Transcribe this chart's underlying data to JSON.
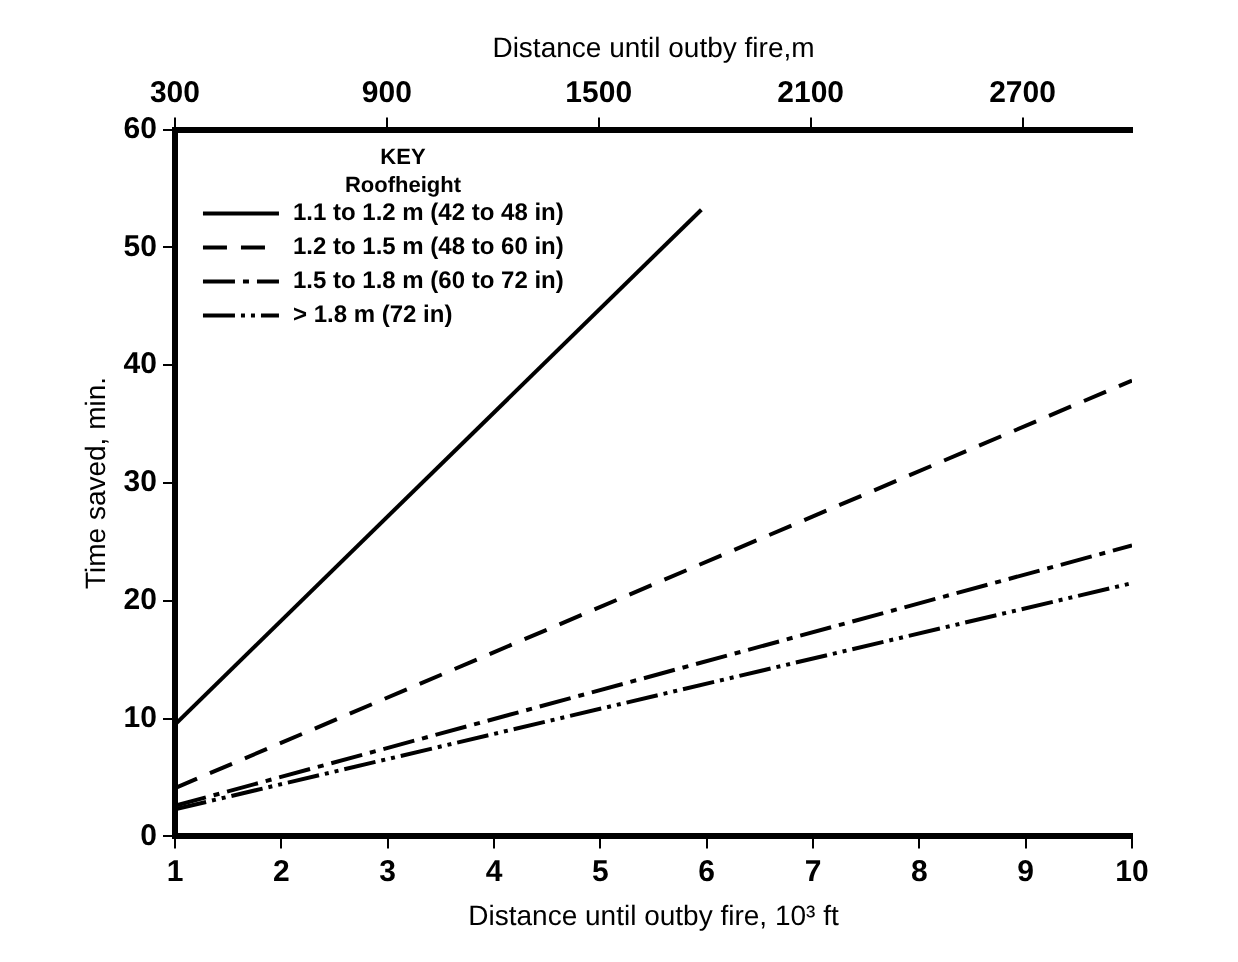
{
  "chart_data": {
    "type": "line",
    "xlabel": "Distance until outby fire, 10³ ft",
    "x2label": "Distance until outby fire,m",
    "ylabel": "Time saved, min.",
    "legend_title": "KEY\nRoofheight",
    "xlim": [
      1,
      10
    ],
    "xticks": [
      1,
      2,
      3,
      4,
      5,
      6,
      7,
      8,
      9,
      10
    ],
    "x2lim": [
      300,
      3010
    ],
    "x2ticks": [
      300,
      900,
      1500,
      2100,
      2700
    ],
    "ylim": [
      0,
      60
    ],
    "yticks": [
      0,
      10,
      20,
      30,
      40,
      50,
      60
    ],
    "grid": false,
    "legend": "top left",
    "marker": "none",
    "series": [
      {
        "name": "1.1 to 1.2 m (42 to 48 in)",
        "color": "#000000",
        "line_style": "solid",
        "x": [
          1,
          5.95
        ],
        "values": [
          9.5,
          53.2
        ]
      },
      {
        "name": "1.2 to 1.5 m (48 to 60 in)",
        "color": "#000000",
        "line_style": "dashed",
        "x": [
          1,
          10
        ],
        "values": [
          4.1,
          38.7
        ]
      },
      {
        "name": "1.5 to 1.8 m (60 to 72 in)",
        "color": "#000000",
        "line_style": "dashed",
        "x": [
          1,
          10
        ],
        "values": [
          2.6,
          24.7
        ]
      },
      {
        "name": "> 1.8 m (72 in)",
        "color": "#000000",
        "line_style": "dashed",
        "x": [
          1,
          10
        ],
        "values": [
          2.3,
          21.5
        ]
      }
    ]
  }
}
